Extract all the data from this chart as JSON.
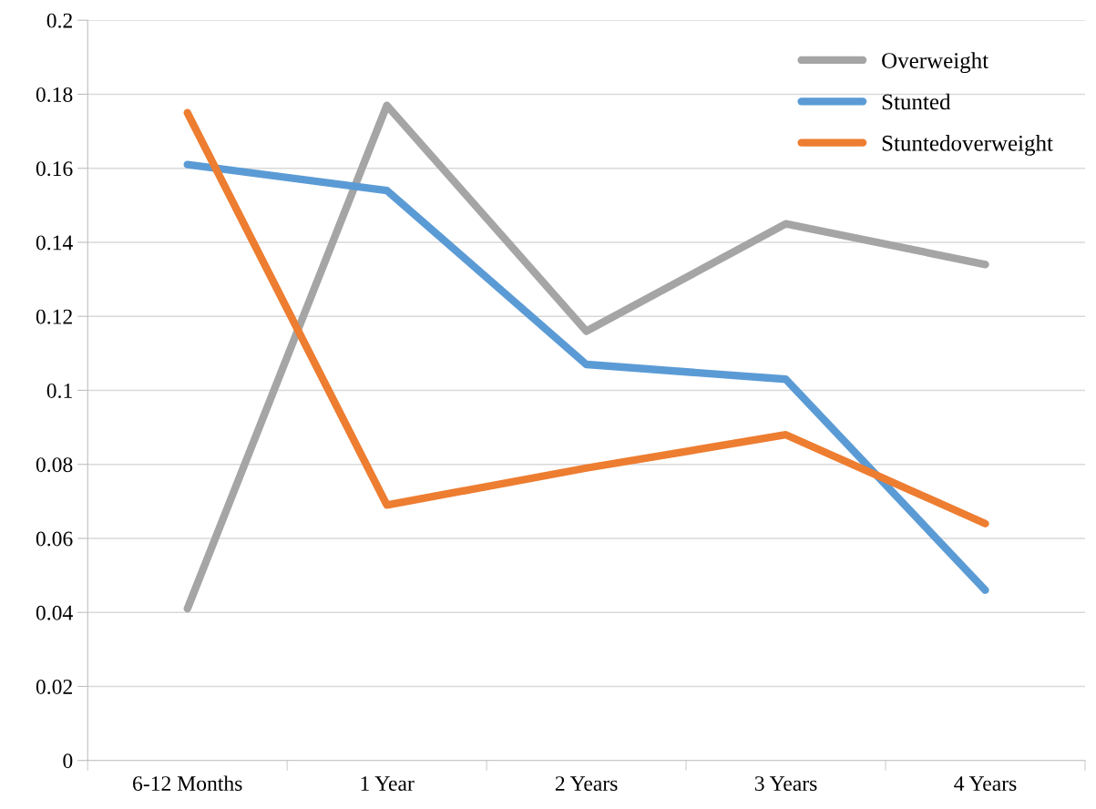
{
  "chart_data": {
    "type": "line",
    "categories": [
      "6-12 Months",
      "1 Year",
      "2 Years",
      "3 Years",
      "4 Years"
    ],
    "series": [
      {
        "name": "Overweight",
        "color": "#a5a5a5",
        "values": [
          0.041,
          0.177,
          0.116,
          0.145,
          0.134
        ]
      },
      {
        "name": "Stunted",
        "color": "#5b9bd5",
        "values": [
          0.161,
          0.154,
          0.107,
          0.103,
          0.046
        ]
      },
      {
        "name": "Stuntedoverweight",
        "color": "#ed7d31",
        "values": [
          0.175,
          0.069,
          0.079,
          0.088,
          0.064
        ]
      }
    ],
    "ylim": [
      0,
      0.2
    ],
    "yticks": [
      0,
      0.02,
      0.04,
      0.06,
      0.08,
      0.1,
      0.12,
      0.14,
      0.16,
      0.18,
      0.2
    ],
    "grid": "y",
    "legend": "top right",
    "marker": "none",
    "line_style": "solid"
  }
}
